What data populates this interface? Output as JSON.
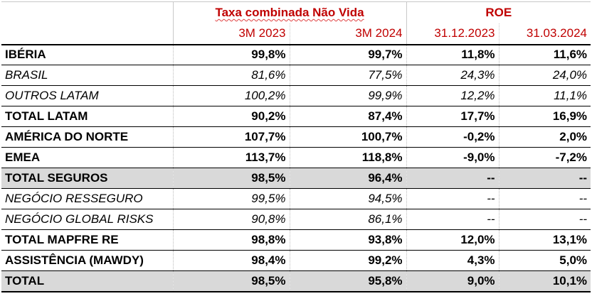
{
  "header": {
    "group1": "Taxa combinada Não Vida",
    "group2": "ROE",
    "cols": [
      "3M 2023",
      "3M 2024",
      "31.12.2023",
      "31.03.2024"
    ]
  },
  "rows": [
    {
      "label": "IBÉRIA",
      "values": [
        "99,8%",
        "99,7%",
        "11,8%",
        "11,6%"
      ],
      "style": "bold"
    },
    {
      "label": "BRASIL",
      "values": [
        "81,6%",
        "77,5%",
        "24,3%",
        "24,0%"
      ],
      "style": "italic"
    },
    {
      "label": "OUTROS LATAM",
      "values": [
        "100,2%",
        "99,9%",
        "12,2%",
        "11,1%"
      ],
      "style": "italic"
    },
    {
      "label": "TOTAL LATAM",
      "values": [
        "90,2%",
        "87,4%",
        "17,7%",
        "16,9%"
      ],
      "style": "bold"
    },
    {
      "label": "AMÉRICA DO NORTE",
      "values": [
        "107,7%",
        "100,7%",
        "-0,2%",
        "2,0%"
      ],
      "style": "bold"
    },
    {
      "label": "EMEA",
      "values": [
        "113,7%",
        "118,8%",
        "-9,0%",
        "-7,2%"
      ],
      "style": "bold"
    },
    {
      "label": "TOTAL SEGUROS",
      "values": [
        "98,5%",
        "96,4%",
        "--",
        "--"
      ],
      "style": "bold-gray"
    },
    {
      "label": "NEGÓCIO RESSEGURO",
      "values": [
        "99,5%",
        "94,5%",
        "--",
        "--"
      ],
      "style": "italic"
    },
    {
      "label": "NEGÓCIO GLOBAL RISKS",
      "values": [
        "90,8%",
        "86,1%",
        "--",
        "--"
      ],
      "style": "italic"
    },
    {
      "label": "TOTAL MAPFRE RE",
      "values": [
        "98,8%",
        "93,8%",
        "12,0%",
        "13,1%"
      ],
      "style": "bold"
    },
    {
      "label": "ASSISTÊNCIA (MAWDY)",
      "values": [
        "98,4%",
        "99,2%",
        "4,3%",
        "5,0%"
      ],
      "style": "bold"
    },
    {
      "label": "TOTAL",
      "values": [
        "98,5%",
        "95,8%",
        "9,0%",
        "10,1%"
      ],
      "style": "bold-gray"
    }
  ],
  "colors": {
    "header_red": "#c00000",
    "total_fill": "#d9d9d9"
  }
}
